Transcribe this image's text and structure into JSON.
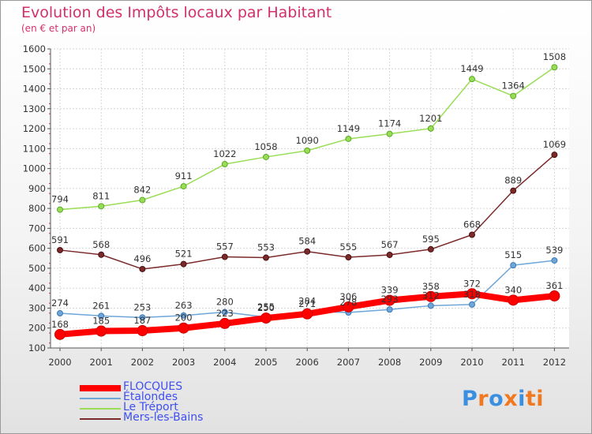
{
  "chart_data": {
    "type": "line",
    "title": "Evolution des Impôts locaux par Habitant",
    "subtitle": "(en € et par an)",
    "xlabel": "",
    "ylabel": "",
    "categories": [
      "2000",
      "2001",
      "2002",
      "2003",
      "2004",
      "2005",
      "2006",
      "2007",
      "2008",
      "2009",
      "2010",
      "2011",
      "2012"
    ],
    "ylim": [
      100,
      1600
    ],
    "y_ticks": [
      100,
      200,
      300,
      400,
      500,
      600,
      700,
      800,
      900,
      1000,
      1100,
      1200,
      1300,
      1400,
      1500,
      1600
    ],
    "grid": true,
    "legend_position": "bottom-left",
    "series": [
      {
        "name": "FLOCQUES",
        "color": "#ff0000",
        "values": [
          168,
          185,
          187,
          200,
          223,
          250,
          271,
          306,
          339,
          358,
          372,
          340,
          361
        ]
      },
      {
        "name": "Étalondes",
        "color": "#6ea6d8",
        "values": [
          274,
          261,
          253,
          263,
          280,
          255,
          284,
          278,
          293,
          312,
          318,
          515,
          539
        ]
      },
      {
        "name": "Le Tréport",
        "color": "#99dd55",
        "values": [
          794,
          811,
          842,
          911,
          1022,
          1058,
          1090,
          1149,
          1174,
          1201,
          1449,
          1364,
          1508
        ]
      },
      {
        "name": "Mers-les-Bains",
        "color": "#7a2a2a",
        "values": [
          591,
          568,
          496,
          521,
          557,
          553,
          584,
          555,
          567,
          595,
          668,
          889,
          1069
        ]
      }
    ]
  },
  "brand": {
    "logo_text": "Proxiti",
    "letter_colors": [
      "#3a8fe0",
      "#f07820",
      "#3a8fe0",
      "#f07820",
      "#3a8fe0",
      "#f07820",
      "#f07820"
    ]
  }
}
